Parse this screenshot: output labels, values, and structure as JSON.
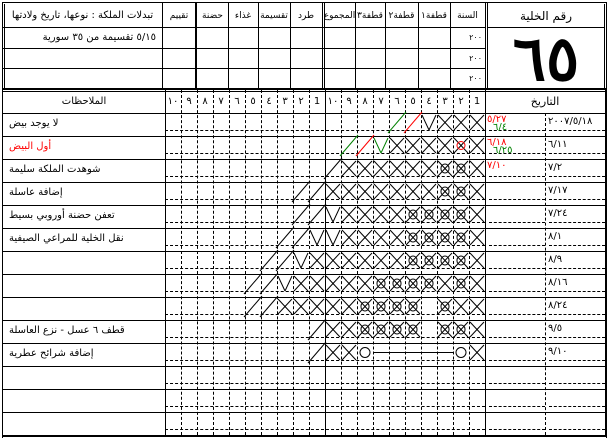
{
  "top": {
    "hive_label": "رقم الخلية",
    "hive_number": "٦٥",
    "headers": {
      "year": "السنة",
      "harvest1": "قطفة١",
      "harvest2": "قطفة٢",
      "harvest3": "قطفة٣",
      "total": "المجموع",
      "swarm": "طرد",
      "split": "تقسيمة",
      "food": "غذاء",
      "brood": "حضنة",
      "rating": "تقييم",
      "queen": "تبدلات الملكة : نوعها، تاريخ ولادتها"
    },
    "years": [
      "٢٠٠",
      "٢٠٠",
      "٢٠٠"
    ],
    "queen_rows": [
      "٥/١٥ تقسيمة من ٣٥ سورية",
      "",
      ""
    ]
  },
  "log": {
    "date_header": "التاريخ",
    "notes_header": "الملاحظات",
    "frame_numbers": [
      "1",
      "٢",
      "٣",
      "٤",
      "٥",
      "٦",
      "٧",
      "٨",
      "٩",
      "١٠"
    ],
    "colors": {
      "red": "#ff0000",
      "green": "#008000"
    },
    "rows": [
      {
        "date": "٢٠٠٧/٥/١٨",
        "sub_dates": [
          {
            "text": "٥/٢٧",
            "color": "#ff0000"
          },
          {
            "text": "٦/٤",
            "color": "#008000"
          }
        ],
        "note": "لا يوجد بيض",
        "note_color": "#000000",
        "frames": "XXXVrg.............."
      },
      {
        "date": "٦/١١",
        "sub_dates": [
          {
            "text": "٦/١٨",
            "color": "#ff0000"
          },
          {
            "text": "٦/٢٥",
            "color": "#008000"
          }
        ],
        "note": "أول البيض",
        "note_color": "#ff0000",
        "frames": "XRXXXXGrg..........."
      },
      {
        "date": "٧/٢",
        "sub_dates": [
          {
            "text": "٧/١٠",
            "color": "#ff0000"
          }
        ],
        "note": "شوهدت الملكة سليمة",
        "note_color": "#000000",
        "frames": "XBBXXXXXX/.........."
      },
      {
        "date": "٧/١٧",
        "sub_dates": [],
        "note": "إضافة عاسلة",
        "note_color": "#000000",
        "frames": "XBBXXXXXXX//........"
      },
      {
        "date": "٧/٢٤",
        "sub_dates": [],
        "note": "تعفن حضنة أوروبي بسيط",
        "note_color": "#000000",
        "frames": "XBBBBXXXXV//........"
      },
      {
        "date": "٨/١",
        "sub_dates": [],
        "note": "نقل الخلية للمراعي الصيفية",
        "note_color": "#000000",
        "frames": "XBBBBXXXXVV//......."
      },
      {
        "date": "٨/٩",
        "sub_dates": [],
        "note": "",
        "note_color": "#000000",
        "frames": "XBBBBXXXXXXV//......"
      },
      {
        "date": "٨/١٦",
        "sub_dates": [],
        "note": "",
        "note_color": "#000000",
        "frames": "XBXBBBBXXXXXV//....."
      },
      {
        "date": "٨/٢٤",
        "sub_dates": [],
        "note": "",
        "note_color": "#000000",
        "frames": "XXB.BBBBXXXXX//....."
      },
      {
        "date": "٩/٥",
        "sub_dates": [],
        "note": "قطف ٦ عسل - نزع العاسلة",
        "note_color": "#000000",
        "frames": "XBB.BBBBXX/........."
      },
      {
        "date": "٩/١٠",
        "sub_dates": [],
        "note": "إضافة شرائح عطرية",
        "note_color": "#000000",
        "frames": "XO-----OXX/........."
      },
      {
        "date": "",
        "sub_dates": [],
        "note": "",
        "note_color": "#000000",
        "frames": "...................."
      },
      {
        "date": "",
        "sub_dates": [],
        "note": "",
        "note_color": "#000000",
        "frames": "...................."
      },
      {
        "date": "",
        "sub_dates": [],
        "note": "",
        "note_color": "#000000",
        "frames": "...................."
      }
    ]
  }
}
